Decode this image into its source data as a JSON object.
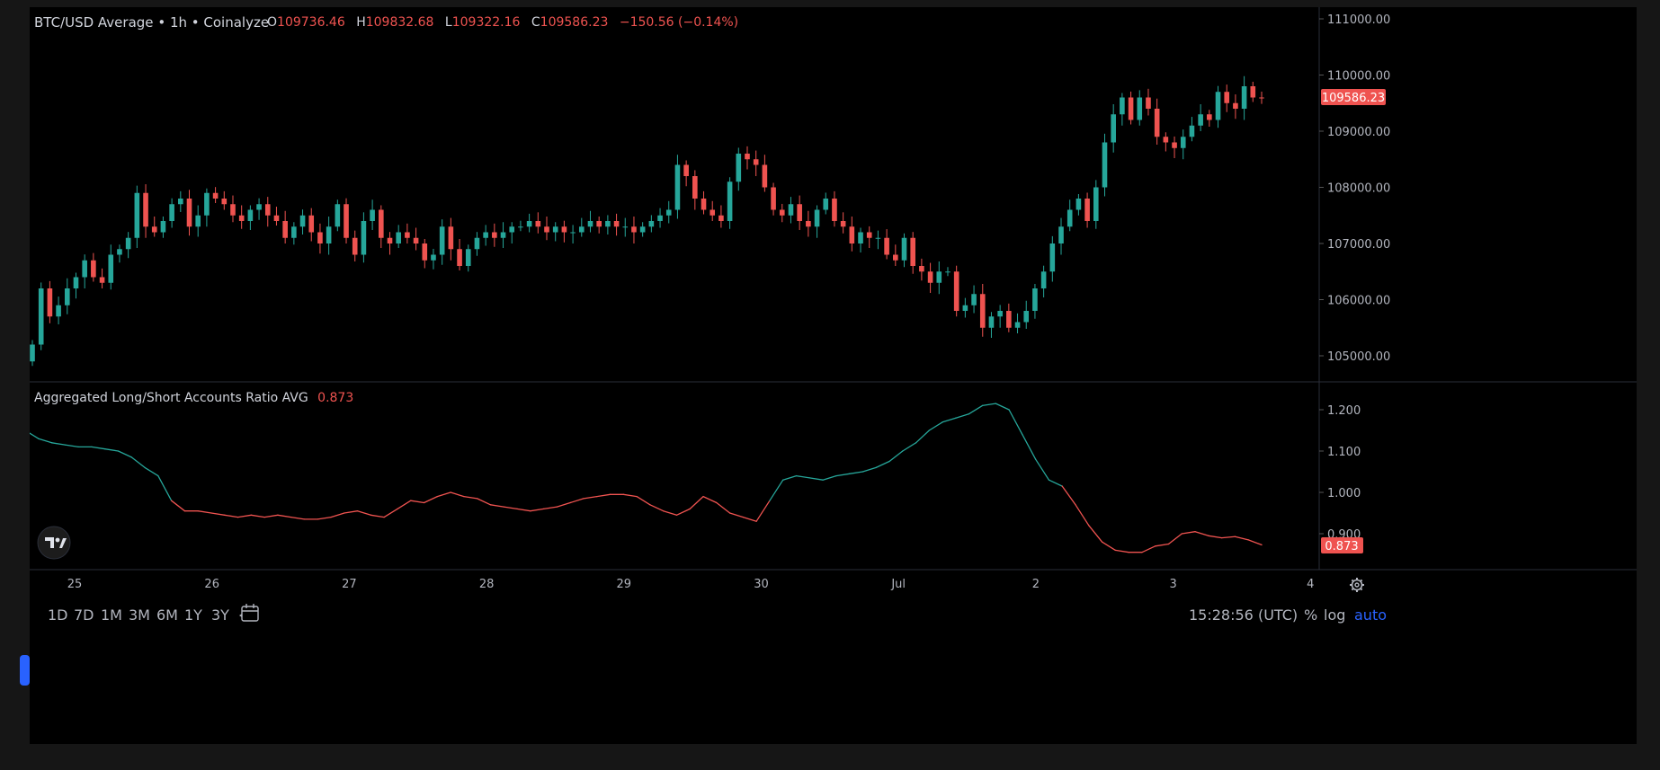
{
  "header": {
    "symbol": "BTC/USD Average",
    "interval": "1h",
    "source": "Coinalyze",
    "o_label": "O",
    "o_value": "109736.46",
    "h_label": "H",
    "h_value": "109832.68",
    "l_label": "L",
    "l_value": "109322.16",
    "c_label": "C",
    "c_value": "109586.23",
    "change": "−150.56 (−0.14%)"
  },
  "indicator": {
    "title": "Aggregated Long/Short Accounts Ratio AVG",
    "value": "0.873"
  },
  "price_badge": "109586.23",
  "ratio_badge": "0.873",
  "toolbar": {
    "timeframes": [
      "1D",
      "7D",
      "1M",
      "3M",
      "6M",
      "1Y",
      "3Y"
    ],
    "clock": "15:28:56 (UTC)",
    "percent_label": "%",
    "log_label": "log",
    "auto_label": "auto"
  },
  "colors": {
    "up": "#26a69a",
    "down": "#ef5350",
    "accent": "#2962ff",
    "background": "#000000"
  },
  "icons": {
    "logo": "tradingview-logo-icon",
    "date_range": "calendar-range-icon",
    "settings": "gear-icon"
  },
  "chart_data": [
    {
      "type": "candlestick",
      "title": "BTC/USD Average • 1h • Coinalyze",
      "interval": "1h",
      "x_tick_labels": [
        "25",
        "26",
        "27",
        "28",
        "29",
        "30",
        "Jul",
        "2",
        "3",
        "4"
      ],
      "y_tick_labels": [
        "111000.00",
        "110000.00",
        "109000.00",
        "108000.00",
        "107000.00",
        "106000.00",
        "105000.00"
      ],
      "ylim": [
        104600,
        111000
      ],
      "last_price": 109586.23,
      "close_series_approx": [
        105200,
        106200,
        105700,
        105900,
        106200,
        106400,
        106700,
        106400,
        106300,
        106800,
        106900,
        107100,
        107900,
        107300,
        107200,
        107400,
        107700,
        107800,
        107300,
        107500,
        107900,
        107800,
        107700,
        107500,
        107400,
        107600,
        107700,
        107500,
        107400,
        107100,
        107300,
        107500,
        107200,
        107000,
        107300,
        107700,
        107100,
        106800,
        107400,
        107600,
        107100,
        107000,
        107200,
        107100,
        107000,
        106700,
        106800,
        107300,
        106900,
        106600,
        106900,
        107100,
        107200,
        107100,
        107200,
        107300,
        107300,
        107400,
        107300,
        107200,
        107300,
        107200,
        107200,
        107300,
        107400,
        107300,
        107400,
        107300,
        107300,
        107200,
        107300,
        107400,
        107500,
        107600,
        108400,
        108200,
        107800,
        107600,
        107500,
        107400,
        108100,
        108600,
        108500,
        108400,
        108000,
        107600,
        107500,
        107700,
        107400,
        107300,
        107600,
        107800,
        107400,
        107300,
        107000,
        107200,
        107100,
        107100,
        106800,
        106700,
        107100,
        106600,
        106500,
        106300,
        106500,
        106500,
        105800,
        105900,
        106100,
        105500,
        105700,
        105800,
        105500,
        105600,
        105800,
        106200,
        106500,
        107000,
        107300,
        107600,
        107800,
        107400,
        108000,
        108800,
        109300,
        109600,
        109200,
        109600,
        109400,
        108900,
        108800,
        108700,
        108900,
        109100,
        109300,
        109200,
        109700,
        109500,
        109400,
        109800,
        109600,
        109586.23
      ]
    },
    {
      "type": "line",
      "title": "Aggregated Long/Short Accounts Ratio AVG",
      "x_tick_labels": [
        "25",
        "26",
        "27",
        "28",
        "29",
        "30",
        "Jul",
        "2",
        "3",
        "4"
      ],
      "y_tick_labels": [
        "1.200",
        "1.100",
        "1.000",
        "0.900"
      ],
      "ylim": [
        0.82,
        1.24
      ],
      "last_value": 0.873,
      "color_rule": "teal when above 1.000, red when below",
      "values_approx": [
        1.15,
        1.13,
        1.12,
        1.115,
        1.11,
        1.11,
        1.105,
        1.1,
        1.085,
        1.06,
        1.04,
        0.98,
        0.955,
        0.955,
        0.95,
        0.945,
        0.94,
        0.945,
        0.94,
        0.945,
        0.94,
        0.935,
        0.935,
        0.94,
        0.95,
        0.955,
        0.945,
        0.94,
        0.96,
        0.98,
        0.975,
        0.99,
        1.0,
        0.99,
        0.985,
        0.97,
        0.965,
        0.96,
        0.955,
        0.96,
        0.965,
        0.975,
        0.985,
        0.99,
        0.995,
        0.995,
        0.99,
        0.97,
        0.955,
        0.945,
        0.96,
        0.99,
        0.975,
        0.95,
        0.94,
        0.93,
        0.98,
        1.03,
        1.04,
        1.035,
        1.03,
        1.04,
        1.045,
        1.05,
        1.06,
        1.075,
        1.1,
        1.12,
        1.15,
        1.17,
        1.18,
        1.19,
        1.21,
        1.215,
        1.2,
        1.14,
        1.08,
        1.03,
        1.015,
        0.97,
        0.92,
        0.88,
        0.86,
        0.855,
        0.855,
        0.87,
        0.875,
        0.9,
        0.905,
        0.895,
        0.89,
        0.893,
        0.885,
        0.873
      ]
    }
  ]
}
